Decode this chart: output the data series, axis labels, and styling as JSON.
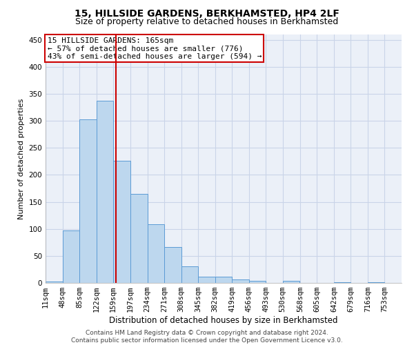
{
  "title1": "15, HILLSIDE GARDENS, BERKHAMSTED, HP4 2LF",
  "title2": "Size of property relative to detached houses in Berkhamsted",
  "xlabel": "Distribution of detached houses by size in Berkhamsted",
  "ylabel": "Number of detached properties",
  "bin_edges": [
    11,
    48,
    85,
    122,
    159,
    197,
    234,
    271,
    308,
    345,
    382,
    419,
    456,
    493,
    530,
    568,
    605,
    642,
    679,
    716,
    753
  ],
  "bar_heights": [
    3,
    97,
    303,
    337,
    226,
    165,
    108,
    66,
    31,
    12,
    11,
    7,
    4,
    0,
    4,
    0,
    0,
    1,
    0,
    1
  ],
  "bar_color": "#BDD7EE",
  "bar_edge_color": "#5B9BD5",
  "bar_linewidth": 0.7,
  "grid_color": "#C9D4E8",
  "background_color": "#EBF0F8",
  "vline_x": 165,
  "vline_color": "#CC0000",
  "annotation_title": "15 HILLSIDE GARDENS: 165sqm",
  "annotation_line1": "← 57% of detached houses are smaller (776)",
  "annotation_line2": "43% of semi-detached houses are larger (594) →",
  "annotation_box_color": "#CC0000",
  "ylim": [
    0,
    460
  ],
  "yticks": [
    0,
    50,
    100,
    150,
    200,
    250,
    300,
    350,
    400,
    450
  ],
  "footer1": "Contains HM Land Registry data © Crown copyright and database right 2024.",
  "footer2": "Contains public sector information licensed under the Open Government Licence v3.0.",
  "title1_fontsize": 10,
  "title2_fontsize": 9,
  "xlabel_fontsize": 8.5,
  "ylabel_fontsize": 8,
  "tick_fontsize": 7.5,
  "annotation_fontsize": 8,
  "footer_fontsize": 6.5
}
